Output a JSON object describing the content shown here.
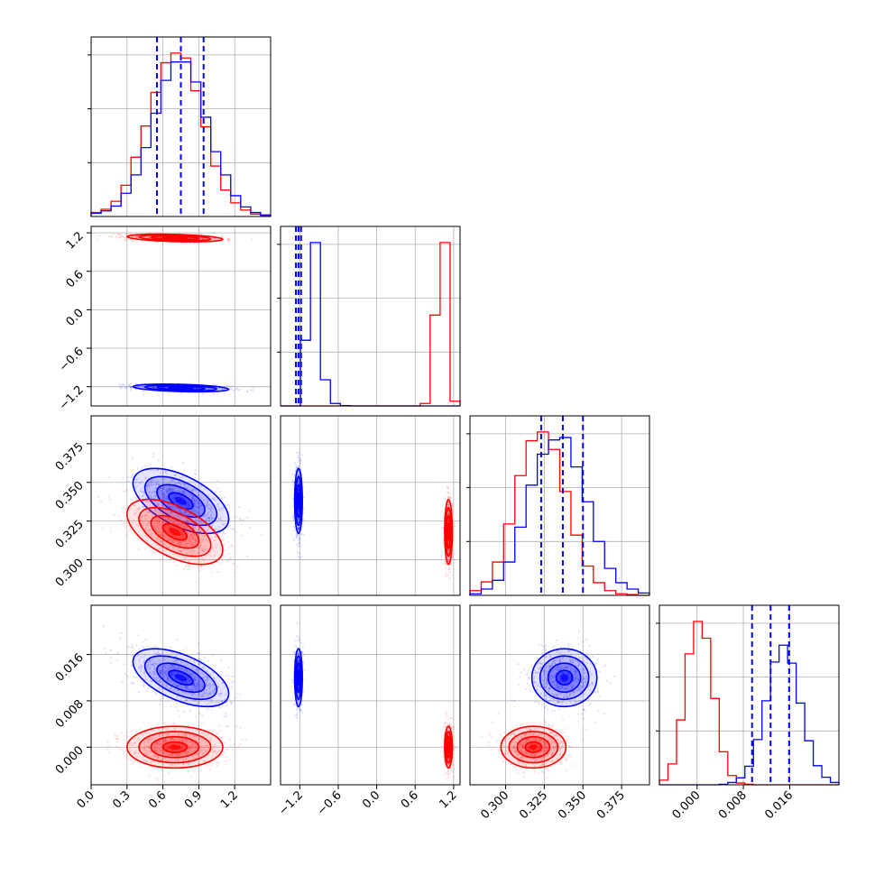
{
  "colors": {
    "blue": "#0000ff",
    "red": "#ff0000",
    "grid": "#b0b0b0",
    "frame": "#000000"
  },
  "chart_data": {
    "type": "corner",
    "grid": true,
    "parameters": [
      {
        "index": 0,
        "range": [
          0.0,
          1.5
        ],
        "ticks": [
          0.0,
          0.3,
          0.6,
          0.9,
          1.2
        ],
        "tick_labels": [
          "0.0",
          "0.3",
          "0.6",
          "0.9",
          "1.2"
        ]
      },
      {
        "index": 1,
        "range": [
          -1.5,
          1.3
        ],
        "ticks": [
          -1.2,
          -0.6,
          0.0,
          0.6,
          1.2
        ],
        "tick_labels": [
          "−1.2",
          "−0.6",
          "0.0",
          "0.6",
          "1.2"
        ]
      },
      {
        "index": 2,
        "range": [
          0.277,
          0.393
        ],
        "ticks": [
          0.3,
          0.325,
          0.35,
          0.375
        ],
        "tick_labels": [
          "0.300",
          "0.325",
          "0.350",
          "0.375"
        ]
      },
      {
        "index": 3,
        "range": [
          -0.0065,
          0.0245
        ],
        "ticks": [
          0.0,
          0.008,
          0.016
        ],
        "tick_labels": [
          "0.000",
          "0.008",
          "0.016"
        ]
      }
    ],
    "series": [
      {
        "color": "#0000ff",
        "mean": [
          0.75,
          -1.22,
          0.338,
          0.012
        ],
        "sd": [
          0.2,
          0.03,
          0.0105,
          0.0025
        ],
        "corr": {
          "0-1": -0.35,
          "0-2": -0.55,
          "0-3": -0.55,
          "1-2": 0.0,
          "1-3": 0.0,
          "2-3": 0.0
        },
        "quantiles": [
          [
            0.55,
            0.75,
            0.94
          ],
          [
            -1.26,
            -1.22,
            -1.18
          ],
          [
            0.323,
            0.337,
            0.35
          ],
          [
            0.0095,
            0.0127,
            0.0159
          ]
        ],
        "histograms": [
          [
            0.4,
            0.7,
            1.3,
            2.9,
            5.2,
            8.6,
            12.9,
            17.0,
            19.3,
            19.3,
            16.8,
            12.4,
            8.1,
            5.2,
            2.6,
            1.2,
            0.5,
            0.2
          ],
          [
            0.0,
            0.0,
            40.2,
            100.0,
            16.0,
            1.5,
            0.2,
            0,
            0,
            0,
            0,
            0,
            0,
            0,
            0,
            0,
            0,
            0
          ],
          [
            0.2,
            0.8,
            1.9,
            4.2,
            8.6,
            13.9,
            17.8,
            19.6,
            19.9,
            16.2,
            11.8,
            6.8,
            3.4,
            1.6,
            0.8,
            0.3
          ],
          [
            0,
            0,
            0,
            0,
            0,
            0,
            0,
            0.1,
            0.4,
            1.2,
            3.2,
            7.8,
            14.5,
            21.2,
            24.1,
            21.0,
            14.1,
            7.6,
            3.3,
            1.3,
            0.4
          ]
        ]
      },
      {
        "color": "#ff0000",
        "mean": [
          0.7,
          1.12,
          0.318,
          0.0
        ],
        "sd": [
          0.2,
          0.03,
          0.0105,
          0.0018
        ],
        "corr": {
          "0-1": -0.35,
          "0-2": -0.55,
          "0-3": 0.0,
          "1-2": 0.0,
          "1-3": 0.0,
          "2-3": 0.0
        },
        "quantiles": [
          [
            0.5,
            0.7,
            0.9
          ],
          [
            1.09,
            1.12,
            1.15
          ],
          [
            0.307,
            0.318,
            0.329
          ],
          [
            -0.0018,
            0.0,
            0.0018
          ]
        ],
        "histograms": [
          [
            0.5,
            0.9,
            1.9,
            3.9,
            7.4,
            11.3,
            15.5,
            19.2,
            20.4,
            19.8,
            15.7,
            11.2,
            6.3,
            3.3,
            1.7,
            0.8,
            0.3,
            0.1
          ],
          [
            0,
            0,
            0,
            0,
            0,
            0,
            0,
            0,
            0,
            0,
            0,
            0,
            0,
            0,
            1.5,
            55.6,
            100.0,
            2.9
          ],
          [
            0.6,
            1.7,
            4.2,
            9.0,
            15.1,
            19.5,
            20.6,
            18.4,
            13.1,
            7.6,
            3.7,
            1.6,
            0.6,
            0.2,
            0.1,
            0.0
          ],
          [
            0.8,
            3.6,
            11.2,
            22.6,
            28.2,
            25.3,
            14.9,
            5.7,
            1.6,
            0.3,
            0.1,
            0,
            0,
            0,
            0,
            0,
            0,
            0,
            0,
            0,
            0
          ]
        ]
      }
    ]
  }
}
